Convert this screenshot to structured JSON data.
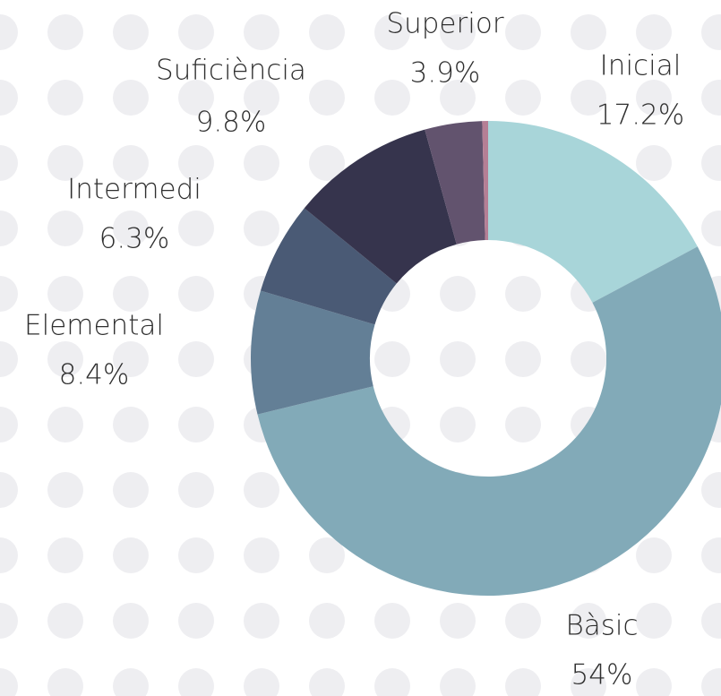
{
  "chart_data": {
    "type": "donut",
    "categories": [
      "Inicial",
      "Bàsic",
      "Elemental",
      "Intermedi",
      "Suficiència",
      "Superior",
      null
    ],
    "values": [
      17.2,
      54,
      8.4,
      6.3,
      9.8,
      3.9,
      0.4
    ],
    "value_labels": [
      "17.2%",
      "54%",
      "8.4%",
      "6.3%",
      "9.8%",
      "3.9%",
      null
    ],
    "colors": [
      "#a8d5d9",
      "#82aab8",
      "#637f96",
      "#4a5a75",
      "#36344d",
      "#62536e",
      "#b57f95"
    ]
  }
}
